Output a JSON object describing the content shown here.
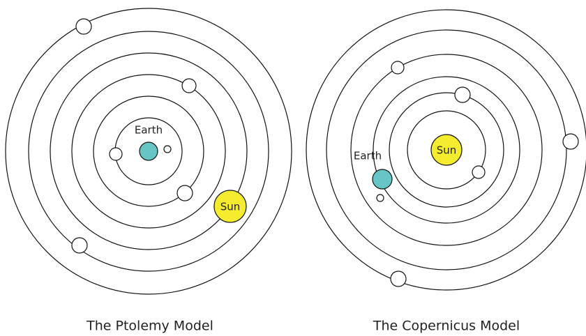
{
  "ptolemy": {
    "earth_label": "Earth",
    "sun_label": "Sun",
    "caption": "The Ptolemy Model"
  },
  "copernicus": {
    "earth_label": "Earth",
    "sun_label": "Sun",
    "caption": "The Copernicus Model"
  }
}
